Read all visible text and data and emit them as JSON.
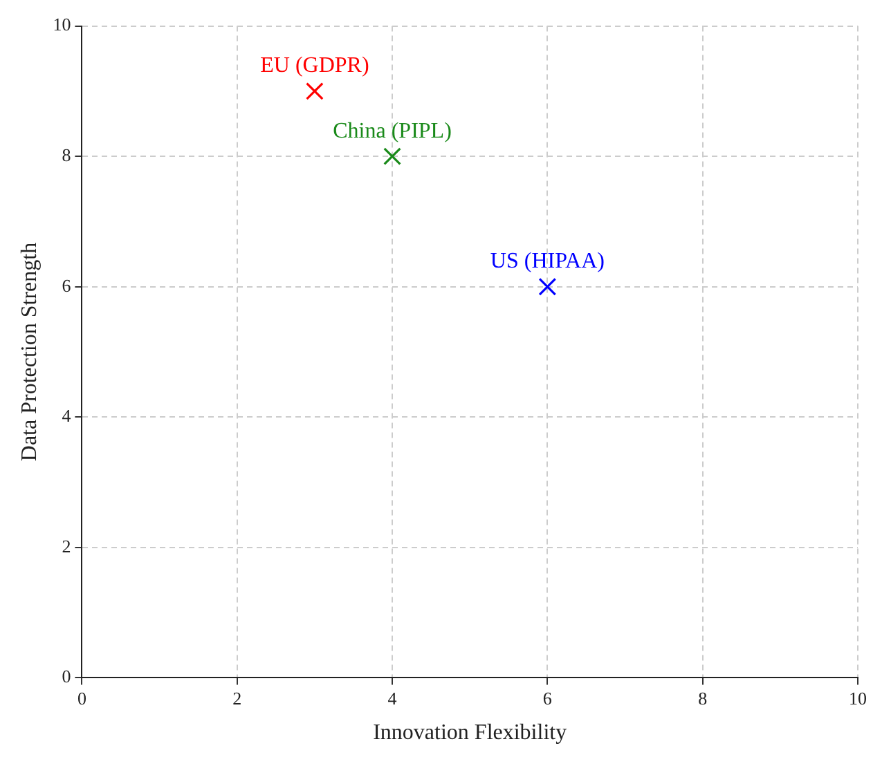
{
  "chart_data": {
    "type": "scatter",
    "xlabel": "Innovation Flexibility",
    "ylabel": "Data Protection Strength",
    "xlim": [
      0,
      10
    ],
    "ylim": [
      0,
      10
    ],
    "xticks": [
      0,
      2,
      4,
      6,
      8,
      10
    ],
    "yticks": [
      0,
      2,
      4,
      6,
      8,
      10
    ],
    "grid": true,
    "marker": "cross",
    "legend": false,
    "series": [
      {
        "name": "EU (GDPR)",
        "color": "#ff0000",
        "x": [
          3
        ],
        "values": [
          9
        ]
      },
      {
        "name": "China (PIPL)",
        "color": "#1a8a1a",
        "x": [
          4
        ],
        "values": [
          8
        ]
      },
      {
        "name": "US (HIPAA)",
        "color": "#0000ff",
        "x": [
          6
        ],
        "values": [
          6
        ]
      }
    ]
  }
}
